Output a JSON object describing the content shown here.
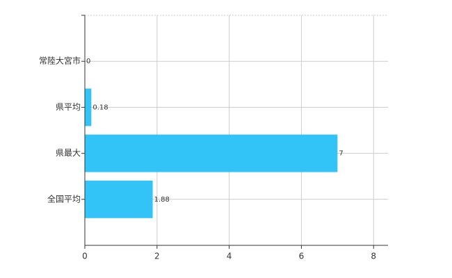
{
  "chart_data": {
    "type": "bar",
    "orientation": "horizontal",
    "categories": [
      "常陸大宮市",
      "県平均",
      "県最大",
      "全国平均"
    ],
    "values": [
      0,
      0.18,
      7,
      1.88
    ],
    "color": "#33c4f7",
    "xlim": [
      0,
      8.4
    ],
    "xticks": [
      0,
      2,
      4,
      6,
      8
    ],
    "grid": true
  }
}
